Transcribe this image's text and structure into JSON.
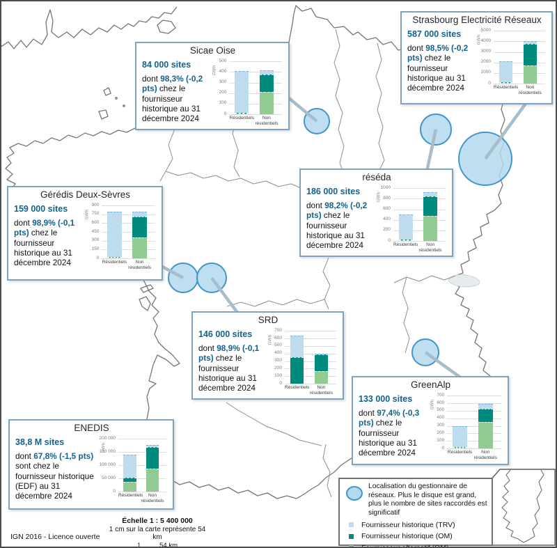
{
  "colors": {
    "trv_lightblue": "#bedcee",
    "om_teal": "#008a7d",
    "alt_green": "#91cb91",
    "circle_fill": "#b4d8ec",
    "circle_stroke": "#3e96ca",
    "box_border": "#7fa2bf",
    "accent_text_blue": "#15618d"
  },
  "operators": [
    {
      "title": "Sicae Oise",
      "sites": "84 000 sites",
      "desc_prefix": "dont",
      "highlight": "98,3% (-0,2 pts)",
      "desc_suffix": "chez le fournisseur historique au 31 décembre 2024"
    },
    {
      "title": "Strasbourg Electricité Réseaux",
      "sites": "587 000 sites",
      "desc_prefix": "dont",
      "highlight": "98,5% (-0,2 pts)",
      "desc_suffix": "chez le fournisseur historique au 31 décembre 2024"
    },
    {
      "title": "réséda",
      "sites": "186 000 sites",
      "desc_prefix": "dont",
      "highlight": "98,2% (-0,2 pts)",
      "desc_suffix": "chez le fournisseur historique au 31 décembre 2024"
    },
    {
      "title": "Gérédis Deux-Sèvres",
      "sites": "159 000 sites",
      "desc_prefix": "dont",
      "highlight": "98,9% (-0,1 pts)",
      "desc_suffix": "chez le fournisseur historique au 31 décembre 2024"
    },
    {
      "title": "SRD",
      "sites": "146 000 sites",
      "desc_prefix": "dont",
      "highlight": "98,9% (-0,1 pts)",
      "desc_suffix": "chez le fournisseur historique au 31 décembre 2024"
    },
    {
      "title": "GreenAlp",
      "sites": "133 000 sites",
      "desc_prefix": "dont",
      "highlight": "97,4% (-0,3 pts)",
      "desc_suffix": "chez le fournisseur historique au 31 décembre 2024"
    },
    {
      "title": "ENEDIS",
      "sites": "38,8 M sites",
      "desc_prefix": "dont",
      "highlight": "67,8% (-1,5 pts)",
      "desc_suffix": "sont chez le fournisseur historique (EDF) au 31 décembre 2024"
    }
  ],
  "chart_data": [
    {
      "operator": "Sicae Oise",
      "type": "stacked_bar",
      "unit": "GWh",
      "ylim": [
        0,
        500
      ],
      "yticks": [
        "500",
        "400",
        "300",
        "200",
        "100",
        "0"
      ],
      "categories": [
        "Résidentiels",
        "Non résidentiels"
      ],
      "series": [
        {
          "name": "Fournisseur alternatif (OM)",
          "key": "alt",
          "values": [
            5,
            210
          ]
        },
        {
          "name": "Fournisseur historique (OM)",
          "key": "om",
          "values": [
            8,
            170
          ]
        },
        {
          "name": "Fournisseur historique (TRV)",
          "key": "trv",
          "values": [
            392,
            35
          ]
        }
      ]
    },
    {
      "operator": "Strasbourg Electricité Réseaux",
      "type": "stacked_bar",
      "unit": "GWh",
      "ylim": [
        0,
        5000
      ],
      "yticks": [
        "5000",
        "4000",
        "3000",
        "2000",
        "1000",
        "0"
      ],
      "categories": [
        "Résidentiels",
        "Non résidentiels"
      ],
      "series": [
        {
          "name": "Fournisseur alternatif (OM)",
          "key": "alt",
          "values": [
            50,
            1700
          ]
        },
        {
          "name": "Fournisseur historique (OM)",
          "key": "om",
          "values": [
            110,
            2050
          ]
        },
        {
          "name": "Fournisseur historique (TRV)",
          "key": "trv",
          "values": [
            1940,
            250
          ]
        }
      ]
    },
    {
      "operator": "réséda",
      "type": "stacked_bar",
      "unit": "GWh",
      "ylim": [
        0,
        1000
      ],
      "yticks": [
        "1000",
        "800",
        "600",
        "400",
        "200",
        "0"
      ],
      "categories": [
        "Résidentiels",
        "Non résidentiels"
      ],
      "series": [
        {
          "name": "Fournisseur alternatif (OM)",
          "key": "alt",
          "values": [
            6,
            480
          ]
        },
        {
          "name": "Fournisseur historique (OM)",
          "key": "om",
          "values": [
            6,
            360
          ]
        },
        {
          "name": "Fournisseur historique (TRV)",
          "key": "trv",
          "values": [
            478,
            80
          ]
        }
      ]
    },
    {
      "operator": "Gérédis Deux-Sèvres",
      "type": "stacked_bar",
      "unit": "GWh",
      "ylim": [
        0,
        900
      ],
      "yticks": [
        "900",
        "750",
        "600",
        "450",
        "300",
        "150",
        "0"
      ],
      "categories": [
        "Résidentiels",
        "Non résidentiels"
      ],
      "series": [
        {
          "name": "Fournisseur alternatif (OM)",
          "key": "alt",
          "values": [
            5,
            360
          ]
        },
        {
          "name": "Fournisseur historique (OM)",
          "key": "om",
          "values": [
            5,
            350
          ]
        },
        {
          "name": "Fournisseur historique (TRV)",
          "key": "trv",
          "values": [
            770,
            90
          ]
        }
      ]
    },
    {
      "operator": "SRD",
      "type": "stacked_bar",
      "unit": "GWh",
      "ylim": [
        0,
        700
      ],
      "yticks": [
        "700",
        "600",
        "500",
        "400",
        "300",
        "200",
        "100",
        "0"
      ],
      "categories": [
        "Résidentiels",
        "Non résidentiels"
      ],
      "series": [
        {
          "name": "Fournisseur alternatif (OM)",
          "key": "alt",
          "values": [
            0,
            170
          ]
        },
        {
          "name": "Fournisseur historique (OM)",
          "key": "om",
          "values": [
            350,
            220
          ]
        },
        {
          "name": "Fournisseur historique (TRV)",
          "key": "trv",
          "values": [
            285,
            5
          ]
        }
      ]
    },
    {
      "operator": "GreenAlp",
      "type": "stacked_bar",
      "unit": "GWh",
      "ylim": [
        0,
        700
      ],
      "yticks": [
        "700",
        "600",
        "500",
        "400",
        "300",
        "200",
        "100",
        "0"
      ],
      "categories": [
        "Résidentiels",
        "Non résidentiels"
      ],
      "series": [
        {
          "name": "Fournisseur alternatif (OM)",
          "key": "alt",
          "values": [
            8,
            350
          ]
        },
        {
          "name": "Fournisseur historique (OM)",
          "key": "om",
          "values": [
            4,
            180
          ]
        },
        {
          "name": "Fournisseur historique (TRV)",
          "key": "trv",
          "values": [
            278,
            65
          ]
        }
      ]
    },
    {
      "operator": "ENEDIS",
      "type": "stacked_bar",
      "unit": "GWh",
      "ylim": [
        0,
        200000
      ],
      "yticks": [
        "200 000",
        "150 000",
        "100 000",
        "50 000",
        "0"
      ],
      "categories": [
        "Résidentiels",
        "Non résidentiels"
      ],
      "series": [
        {
          "name": "Fournisseur alternatif (OM)",
          "key": "alt",
          "values": [
            38000,
            88000
          ]
        },
        {
          "name": "Fournisseur historique (OM)",
          "key": "om",
          "values": [
            15000,
            80000
          ]
        },
        {
          "name": "Fournisseur historique (TRV)",
          "key": "trv",
          "values": [
            87000,
            10000
          ]
        }
      ]
    }
  ],
  "legend": {
    "circle_text": "Localisation du gestionnaire de réseaux. Plus le disque est grand, plus le nombre de sites raccordés est significatif",
    "items": [
      {
        "label": "Fournisseur historique (TRV)",
        "color": "#bedcee"
      },
      {
        "label": "Fournisseur historique (OM)",
        "color": "#008a7d"
      },
      {
        "label": "Fournisseur alternatif (OM)",
        "color": "#91cb91"
      }
    ]
  },
  "scale": {
    "title": "Échelle 1 : 5 400 000",
    "subtitle": "1 cm sur la carte représente 54 km",
    "bar_left_label": "1",
    "bar_right_label": "54 km"
  },
  "attribution": "IGN 2016 - Licence ouverte"
}
